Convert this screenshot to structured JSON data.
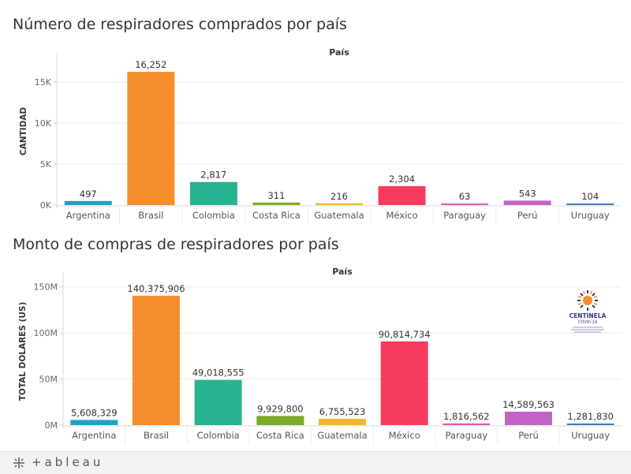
{
  "charts": {
    "chart1_title": "Número de respiradores comprados por país",
    "chart2_title": "Monto de compras de respiradores por país"
  },
  "chart_data": [
    {
      "type": "bar",
      "title": "Número de respiradores comprados por país",
      "header": "País",
      "xlabel": "",
      "ylabel": "CANTIDAD",
      "categories": [
        "Argentina",
        "Brasil",
        "Colombia",
        "Costa Rica",
        "Guatemala",
        "México",
        "Paraguay",
        "Perú",
        "Uruguay"
      ],
      "values": [
        497,
        16252,
        2817,
        311,
        216,
        2304,
        63,
        543,
        104
      ],
      "value_labels": [
        "497",
        "16,252",
        "2,817",
        "311",
        "216",
        "2,304",
        "63",
        "543",
        "104"
      ],
      "ylim": [
        0,
        18000
      ],
      "yticks": [
        0,
        5000,
        10000,
        15000
      ],
      "ytick_labels": [
        "0K",
        "5K",
        "10K",
        "15K"
      ],
      "grid": true,
      "colors": [
        "#1ea3c1",
        "#f58d2b",
        "#27b291",
        "#7aab2c",
        "#f6b52b",
        "#f53c5f",
        "#e15aa9",
        "#c065c6",
        "#3e79bc"
      ]
    },
    {
      "type": "bar",
      "title": "Monto de compras de respiradores por país",
      "header": "País",
      "xlabel": "",
      "ylabel": "TOTAL DOLARES (US)",
      "categories": [
        "Argentina",
        "Brasil",
        "Colombia",
        "Costa Rica",
        "Guatemala",
        "México",
        "Paraguay",
        "Perú",
        "Uruguay"
      ],
      "values": [
        5608329,
        140375906,
        49018555,
        9929800,
        6755523,
        90814734,
        1816562,
        14589563,
        1281830
      ],
      "value_labels": [
        "5,608,329",
        "140,375,906",
        "49,018,555",
        "9,929,800",
        "6,755,523",
        "90,814,734",
        "1,816,562",
        "14,589,563",
        "1,281,830"
      ],
      "ylim": [
        0,
        160000000
      ],
      "yticks": [
        0,
        50000000,
        100000000,
        150000000
      ],
      "ytick_labels": [
        "0M",
        "50M",
        "100M",
        "150M"
      ],
      "grid": true,
      "colors": [
        "#1ea3c1",
        "#f58d2b",
        "#27b291",
        "#7aab2c",
        "#f6b52b",
        "#f53c5f",
        "#e15aa9",
        "#c065c6",
        "#3e79bc"
      ]
    }
  ],
  "logo": {
    "name": "CENTINELA",
    "sub": "COVID-19"
  },
  "footer": {
    "brand": "+ableau"
  }
}
